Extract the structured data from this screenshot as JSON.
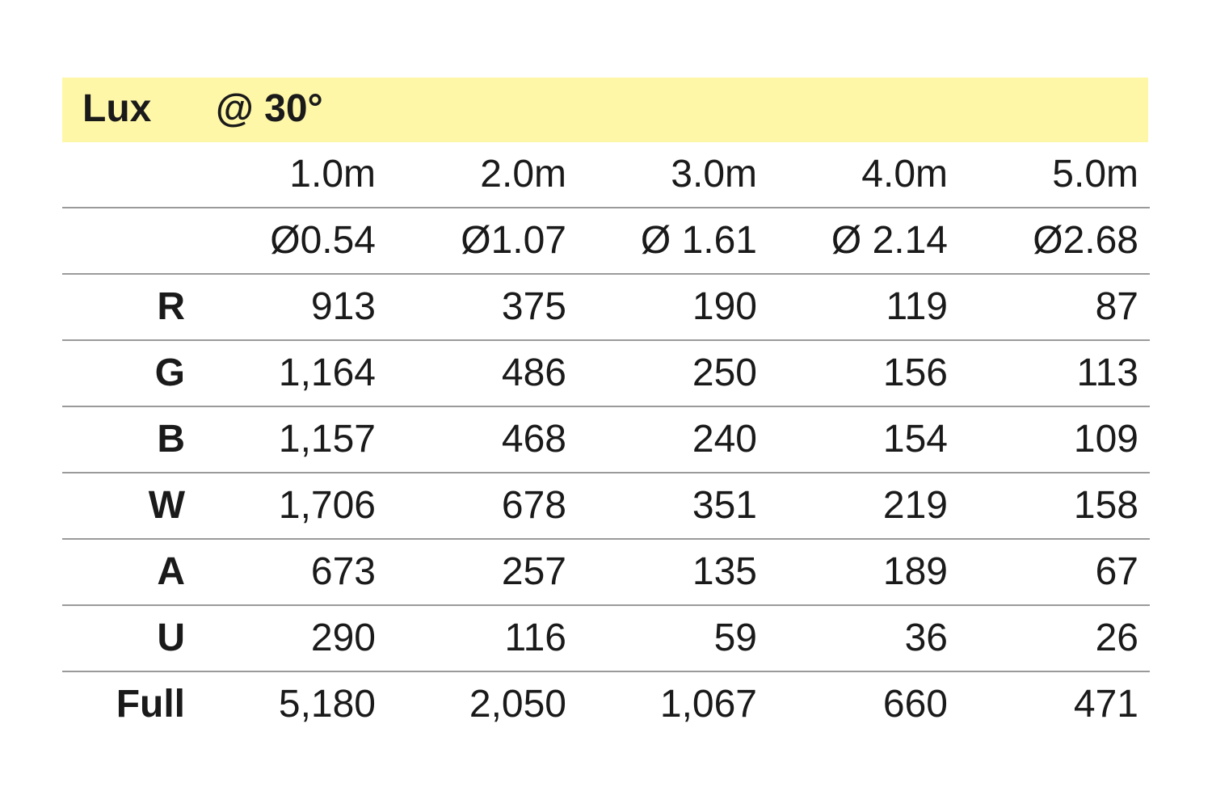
{
  "header": {
    "title": "Lux",
    "angle": "@ 30°",
    "background_color": "#fff7a8"
  },
  "distances": [
    "1.0m",
    "2.0m",
    "3.0m",
    "4.0m",
    "5.0m"
  ],
  "diameters": [
    "Ø0.54",
    "Ø1.07",
    "Ø 1.61",
    "Ø 2.14",
    "Ø2.68"
  ],
  "rows": [
    {
      "label": "R",
      "values": [
        "913",
        "375",
        "190",
        "119",
        "87"
      ]
    },
    {
      "label": "G",
      "values": [
        "1,164",
        "486",
        "250",
        "156",
        "113"
      ]
    },
    {
      "label": "B",
      "values": [
        "1,157",
        "468",
        "240",
        "154",
        "109"
      ]
    },
    {
      "label": "W",
      "values": [
        "1,706",
        "678",
        "351",
        "219",
        "158"
      ]
    },
    {
      "label": "A",
      "values": [
        "673",
        "257",
        "135",
        "189",
        "67"
      ]
    },
    {
      "label": "U",
      "values": [
        "290",
        "116",
        "59",
        "36",
        "26"
      ]
    },
    {
      "label": "Full",
      "values": [
        "5,180",
        "2,050",
        "1,067",
        "660",
        "471"
      ]
    }
  ]
}
